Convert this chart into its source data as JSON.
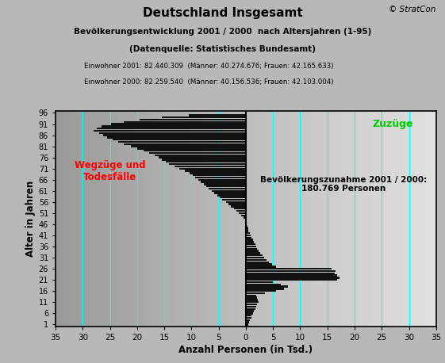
{
  "title": "Deutschland Insgesamt",
  "subtitle1": "Bevölkerungsentwicklung 2001 / 2000  nach Altersjahren (1-95)",
  "subtitle2": "(Datenquelle: Statistisches Bundesamt)",
  "info1": "Einwohner 2001: 82.440.309  (Männer: 40.274.676; Frauen: 42.165.633)",
  "info2": "Einwohner 2000: 82.259.540  (Männer: 40.156.536; Frauen: 42.103.004)",
  "annotation1": "Bevölkerungszunahme 2001 / 2000:\n180.769 Personen",
  "label_left": "Wegzüge und\nTodesfälle",
  "label_right": "Zuzüge",
  "xlabel": "Anzahl Personen (in Tsd.)",
  "ylabel": "Alter in Jahren",
  "copyright": "© StratCon",
  "xlim": [
    -35,
    35
  ],
  "ylim": [
    0,
    97
  ],
  "yticks": [
    1,
    6,
    11,
    16,
    21,
    26,
    31,
    36,
    41,
    46,
    51,
    56,
    61,
    66,
    71,
    76,
    81,
    86,
    91,
    96
  ],
  "xticks": [
    -35,
    -30,
    -25,
    -20,
    -15,
    -10,
    -5,
    0,
    5,
    10,
    15,
    20,
    25,
    30,
    35
  ],
  "xtick_labels": [
    "35",
    "30",
    "25",
    "20",
    "15",
    "10",
    "5",
    "0",
    "5",
    "10",
    "15",
    "20",
    "25",
    "30",
    "35"
  ],
  "vlines_cyan": [
    -30,
    -25,
    -20,
    -15,
    -10,
    -5,
    5,
    10,
    15,
    20,
    25,
    30
  ],
  "bar_color": "#111111",
  "vline_color": "cyan",
  "bg_outer": "#b0b0b0",
  "ages": [
    1,
    2,
    3,
    4,
    5,
    6,
    7,
    8,
    9,
    10,
    11,
    12,
    13,
    14,
    15,
    16,
    17,
    18,
    19,
    20,
    21,
    22,
    23,
    24,
    25,
    26,
    27,
    28,
    29,
    30,
    31,
    32,
    33,
    34,
    35,
    36,
    37,
    38,
    39,
    40,
    41,
    42,
    43,
    44,
    45,
    46,
    47,
    48,
    49,
    50,
    51,
    52,
    53,
    54,
    55,
    56,
    57,
    58,
    59,
    60,
    61,
    62,
    63,
    64,
    65,
    66,
    67,
    68,
    69,
    70,
    71,
    72,
    73,
    74,
    75,
    76,
    77,
    78,
    79,
    80,
    81,
    82,
    83,
    84,
    85,
    86,
    87,
    88,
    89,
    90,
    91,
    92,
    93,
    94,
    95
  ],
  "values": [
    0.4,
    0.6,
    0.8,
    1.0,
    1.1,
    1.3,
    1.5,
    1.7,
    1.9,
    2.1,
    2.3,
    2.2,
    2.0,
    1.9,
    3.5,
    5.5,
    7.0,
    7.8,
    6.5,
    5.0,
    16.8,
    17.3,
    16.8,
    16.3,
    16.5,
    15.8,
    5.5,
    4.8,
    4.3,
    3.8,
    3.4,
    3.0,
    2.7,
    2.4,
    2.1,
    1.9,
    1.7,
    1.5,
    1.3,
    1.1,
    0.9,
    0.7,
    0.5,
    0.4,
    0.3,
    0.2,
    0.1,
    -0.2,
    -0.5,
    -0.9,
    -1.3,
    -1.7,
    -2.2,
    -2.7,
    -3.2,
    -3.7,
    -4.3,
    -4.8,
    -5.3,
    -5.8,
    -6.3,
    -6.8,
    -7.3,
    -7.8,
    -8.3,
    -8.8,
    -9.3,
    -9.8,
    -10.4,
    -11.2,
    -12.2,
    -13.2,
    -14.1,
    -14.8,
    -15.4,
    -16.0,
    -16.8,
    -17.8,
    -18.8,
    -20.0,
    -21.2,
    -22.4,
    -23.5,
    -24.5,
    -25.5,
    -26.3,
    -27.0,
    -28.0,
    -27.5,
    -26.5,
    -24.8,
    -22.5,
    -19.5,
    -15.5,
    -10.5
  ]
}
